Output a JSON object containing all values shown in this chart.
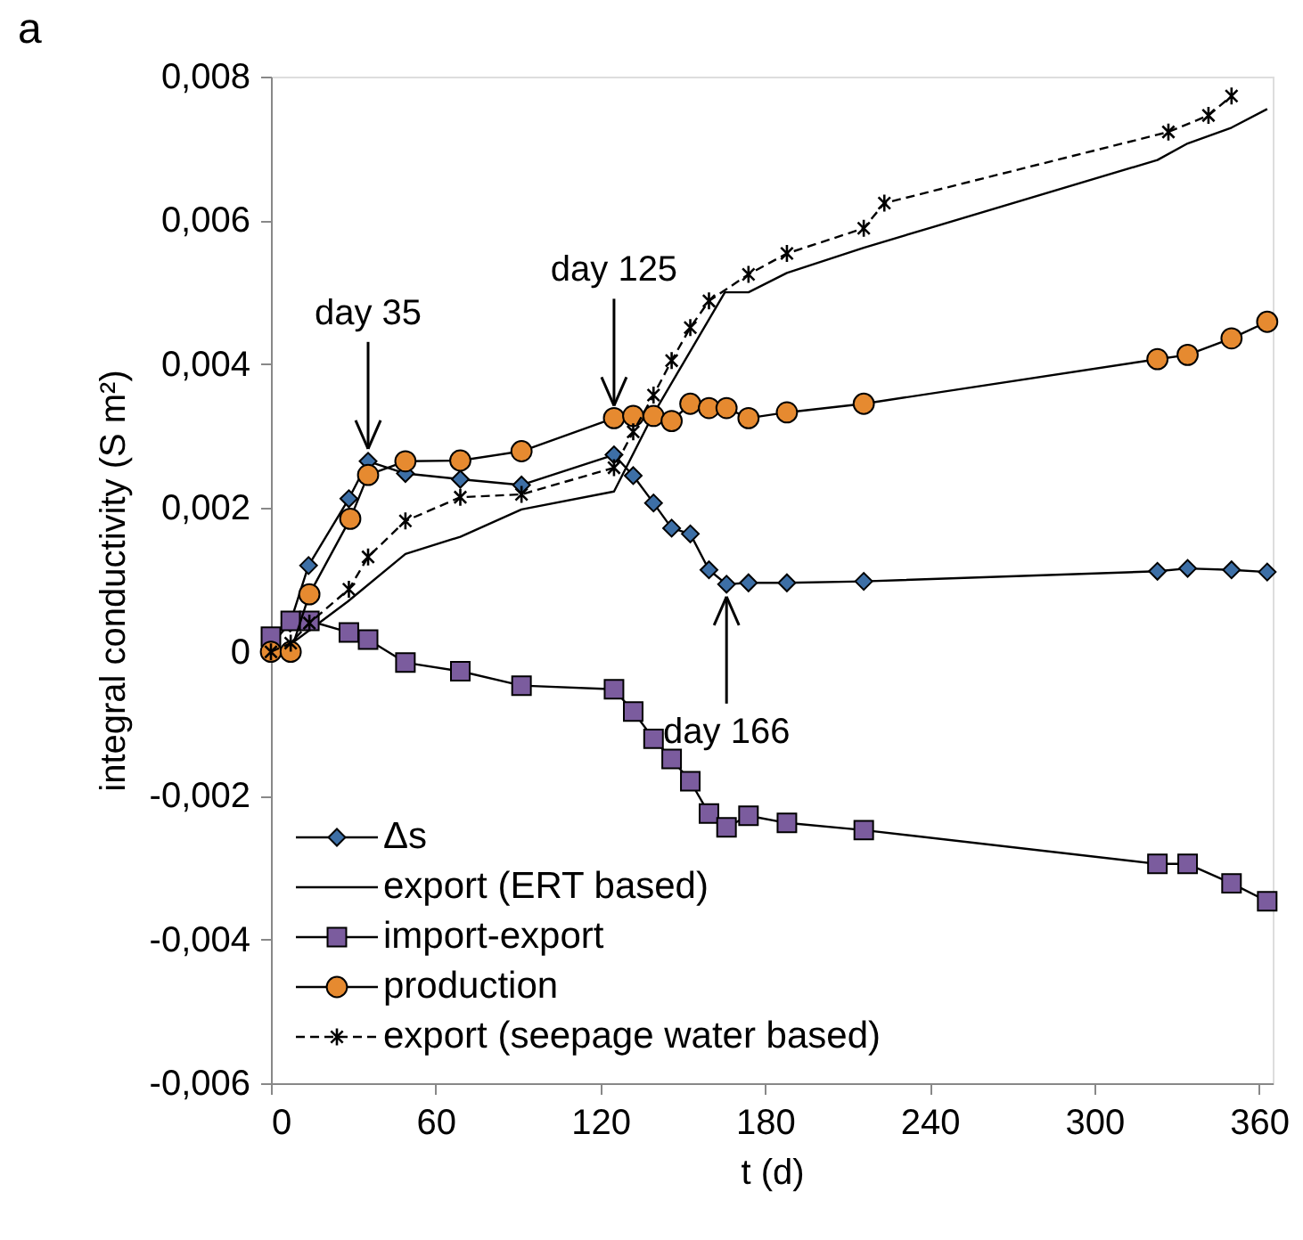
{
  "chart_data": {
    "type": "line",
    "title": "a",
    "xlabel": "t (d)",
    "ylabel": "integral conductivity (S m²)",
    "xlim": [
      0,
      365
    ],
    "xticks": [
      0,
      60,
      120,
      180,
      240,
      300,
      360
    ],
    "ylim": [
      -0.006,
      0.008
    ],
    "yticks": [
      {
        "value": -0.006,
        "label": "-0,006"
      },
      {
        "value": -0.004,
        "label": "-0,004"
      },
      {
        "value": -0.002,
        "label": "-0,002"
      },
      {
        "value": 0,
        "label": "0"
      },
      {
        "value": 0.002,
        "label": "0,002"
      },
      {
        "value": 0.004,
        "label": "0,004"
      },
      {
        "value": 0.006,
        "label": "0,006"
      },
      {
        "value": 0.008,
        "label": "0,008"
      }
    ],
    "grid": false,
    "legend": "bottom left",
    "series": [
      {
        "name": "Δs",
        "color": "#3d6fa6",
        "marker": "diamond",
        "line_style": "solid",
        "x": [
          0,
          7,
          13.7,
          28.4,
          35.4,
          49,
          69,
          91.3,
          125,
          132,
          139.4,
          146,
          152.8,
          159.6,
          166,
          174,
          188,
          216,
          323,
          334,
          350,
          363
        ],
        "values": [
          0.0001,
          0.0004,
          0.0012,
          0.00213,
          0.00265,
          0.00248,
          0.0024,
          0.00232,
          0.00274,
          0.00245,
          0.00207,
          0.00172,
          0.00164,
          0.00114,
          0.00094,
          0.00096,
          0.00096,
          0.00098,
          0.00112,
          0.00116,
          0.00114,
          0.00111
        ]
      },
      {
        "name": "export (ERT based)",
        "color": "#000000",
        "marker": "none",
        "line_style": "solid",
        "x": [
          0,
          7,
          14,
          28,
          49,
          69,
          91.3,
          125,
          139.4,
          165.4,
          174,
          188,
          216,
          323,
          334,
          350,
          363
        ],
        "values": [
          0,
          0.0001,
          0.0003,
          0.0007,
          0.00136,
          0.0016,
          0.00198,
          0.00223,
          0.00331,
          0.005,
          0.005,
          0.00527,
          0.00562,
          0.00684,
          0.00707,
          0.00729,
          0.00755
        ]
      },
      {
        "name": "import-export",
        "color": "#7b5c9e",
        "marker": "square",
        "line_style": "solid",
        "x": [
          0,
          7.2,
          14,
          28.4,
          35.4,
          49,
          69,
          91.3,
          125,
          132,
          139.4,
          146,
          152.8,
          159.6,
          166,
          174,
          188,
          216,
          323,
          334,
          350,
          363
        ],
        "values": [
          0.00021,
          0.00043,
          0.00043,
          0.00027,
          0.00017,
          -0.00015,
          -0.00027,
          -0.00047,
          -0.00052,
          -0.00083,
          -0.00121,
          -0.00149,
          -0.0018,
          -0.00225,
          -0.00244,
          -0.00228,
          -0.00238,
          -0.00248,
          -0.00295,
          -0.00295,
          -0.00322,
          -0.00347
        ]
      },
      {
        "name": "production",
        "color": "#e68a30",
        "marker": "circle",
        "line_style": "solid",
        "x": [
          0,
          7.2,
          14,
          28.9,
          35.4,
          49,
          69,
          91.3,
          125,
          132,
          139.4,
          146,
          152.8,
          159.6,
          166,
          174,
          188,
          216,
          323,
          334,
          350,
          363
        ],
        "values": [
          0,
          0,
          0.0008,
          0.00185,
          0.00246,
          0.00265,
          0.00266,
          0.00279,
          0.00325,
          0.00328,
          0.00328,
          0.00321,
          0.00345,
          0.00339,
          0.00339,
          0.00325,
          0.00333,
          0.00345,
          0.00407,
          0.00413,
          0.00436,
          0.00459
        ]
      },
      {
        "name": "export (seepage water based)",
        "color": "#000000",
        "marker": "cross",
        "line_style": "dashed",
        "x": [
          0,
          7.2,
          14,
          28.4,
          35.4,
          49,
          69,
          91.3,
          125,
          132,
          139.4,
          146,
          152.8,
          159.6,
          174,
          188,
          216,
          223.5,
          327,
          341.6,
          350
        ],
        "values": [
          0,
          0.00012,
          0.0004,
          0.00087,
          0.00132,
          0.00182,
          0.00215,
          0.00219,
          0.00256,
          0.00306,
          0.00357,
          0.00405,
          0.00451,
          0.00488,
          0.00525,
          0.00554,
          0.00589,
          0.00624,
          0.00723,
          0.00746,
          0.00773
        ]
      }
    ],
    "annotations": [
      {
        "text": "day 35",
        "x": 35.4,
        "y": 0.00265
      },
      {
        "text": "day 125",
        "x": 125,
        "y": 0.00325
      },
      {
        "text": "day 166",
        "x": 166,
        "y": 0.00094
      }
    ]
  }
}
